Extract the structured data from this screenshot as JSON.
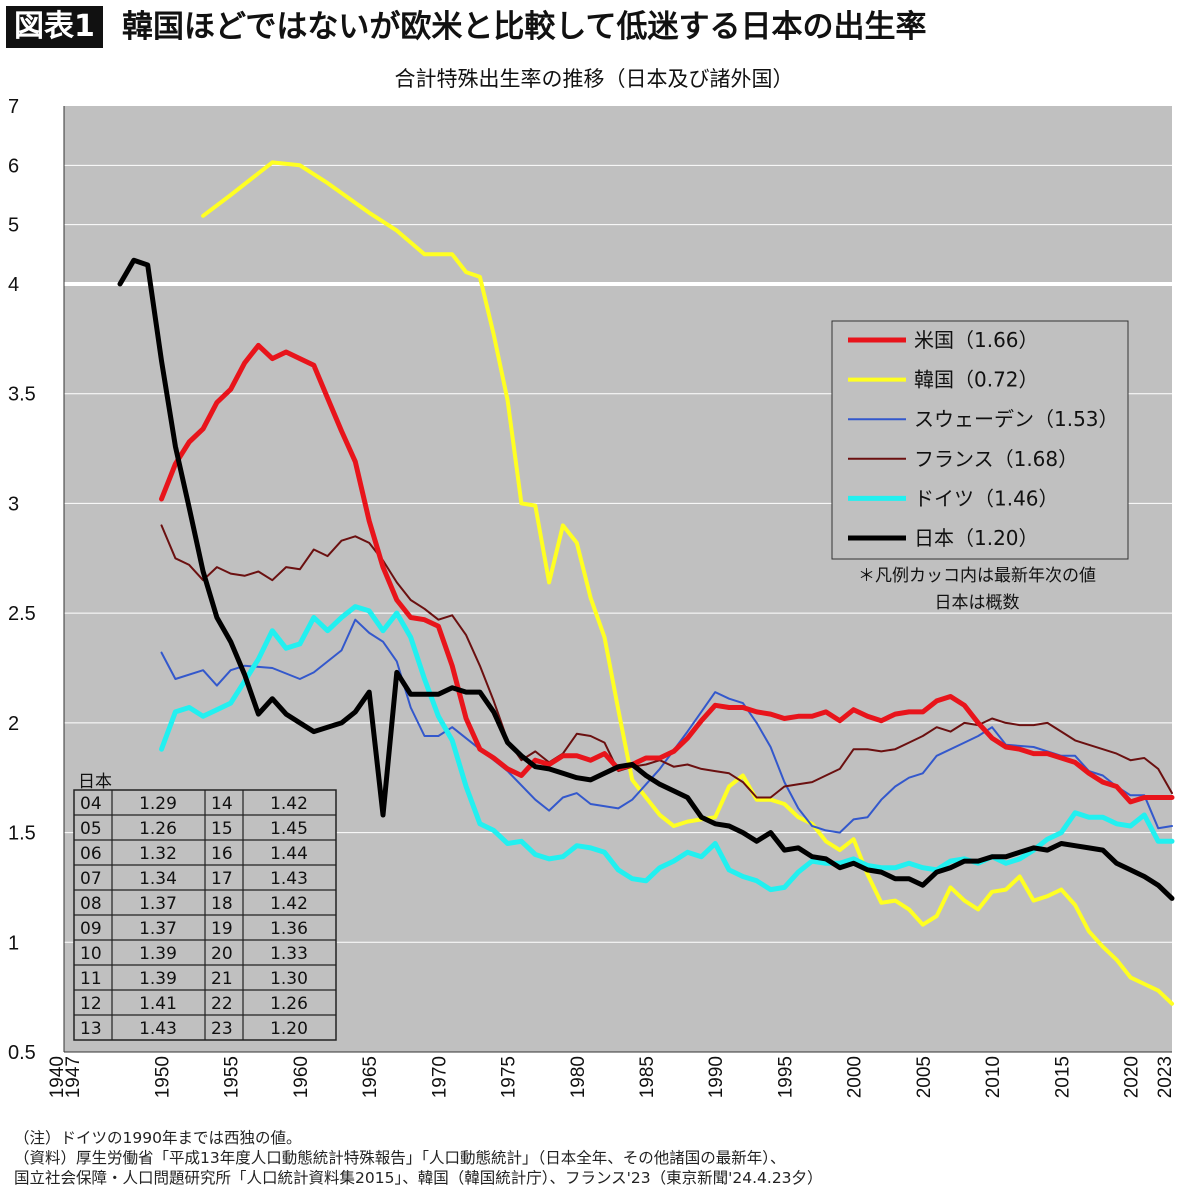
{
  "header": {
    "badge": "図表1",
    "headline": "韓国ほどではないが欧米と比較して低迷する日本の出生率"
  },
  "chart_data": {
    "type": "line",
    "title": "合計特殊出生率の推移（日本及び諸外国）",
    "ylim": [
      0.5,
      7
    ],
    "y_ticks": [
      "0.5",
      "1",
      "1.5",
      "2",
      "2.5",
      "3",
      "3.5",
      "4",
      "5",
      "6",
      "7"
    ],
    "y_scale_note": "axis is broken at 4: 0.5–4 and 4–7 use different scales",
    "x_ticks": [
      "1940",
      "1947",
      "1950",
      "1955",
      "1960",
      "1965",
      "1970",
      "1975",
      "1980",
      "1985",
      "1990",
      "1995",
      "2000",
      "2005",
      "2010",
      "2015",
      "2020",
      "2023"
    ],
    "grid": true,
    "legend_position": "right",
    "legend_note": "＊凡例カッコ内は最新年次の値\n日本は概数",
    "colors": {
      "usa": "#e8141b",
      "korea": "#ffff22",
      "sweden": "#3358cc",
      "france": "#6b1010",
      "germany": "#22f0f0",
      "japan": "#000000",
      "plot_background": "#c0c0c0"
    },
    "series": [
      {
        "key": "usa",
        "name": "米国（1.66）",
        "width": 5,
        "x": [
          1950,
          1951,
          1952,
          1953,
          1954,
          1955,
          1956,
          1957,
          1958,
          1959,
          1960,
          1961,
          1962,
          1963,
          1964,
          1965,
          1966,
          1967,
          1968,
          1969,
          1970,
          1971,
          1972,
          1973,
          1974,
          1975,
          1976,
          1977,
          1978,
          1979,
          1980,
          1981,
          1982,
          1983,
          1984,
          1985,
          1986,
          1987,
          1988,
          1989,
          1990,
          1991,
          1992,
          1993,
          1994,
          1995,
          1996,
          1997,
          1998,
          1999,
          2000,
          2001,
          2002,
          2003,
          2004,
          2005,
          2006,
          2007,
          2008,
          2009,
          2010,
          2011,
          2012,
          2013,
          2014,
          2015,
          2016,
          2017,
          2018,
          2019,
          2020,
          2021,
          2022,
          2023
        ],
        "y": [
          3.02,
          3.18,
          3.28,
          3.34,
          3.46,
          3.52,
          3.64,
          3.72,
          3.66,
          3.69,
          3.66,
          3.63,
          3.48,
          3.33,
          3.19,
          2.92,
          2.71,
          2.56,
          2.48,
          2.47,
          2.44,
          2.26,
          2.02,
          1.88,
          1.84,
          1.79,
          1.76,
          1.83,
          1.81,
          1.85,
          1.85,
          1.83,
          1.86,
          1.79,
          1.81,
          1.84,
          1.84,
          1.87,
          1.93,
          2.01,
          2.08,
          2.07,
          2.07,
          2.05,
          2.04,
          2.02,
          2.03,
          2.03,
          2.05,
          2.01,
          2.06,
          2.03,
          2.01,
          2.04,
          2.05,
          2.05,
          2.1,
          2.12,
          2.08,
          2.0,
          1.93,
          1.89,
          1.88,
          1.86,
          1.86,
          1.84,
          1.82,
          1.77,
          1.73,
          1.71,
          1.64,
          1.66,
          1.66,
          1.66
        ]
      },
      {
        "key": "korea",
        "name": "韓国（0.72）",
        "width": 4,
        "x": [
          1953,
          1955,
          1958,
          1960,
          1962,
          1965,
          1967,
          1969,
          1971,
          1972,
          1973,
          1974,
          1975,
          1976,
          1977,
          1978,
          1979,
          1980,
          1981,
          1982,
          1983,
          1984,
          1985,
          1986,
          1987,
          1988,
          1989,
          1990,
          1991,
          1992,
          1993,
          1994,
          1995,
          1996,
          1997,
          1998,
          1999,
          2000,
          2001,
          2002,
          2003,
          2004,
          2005,
          2006,
          2007,
          2008,
          2009,
          2010,
          2011,
          2012,
          2013,
          2014,
          2015,
          2016,
          2017,
          2018,
          2019,
          2020,
          2021,
          2022,
          2023
        ],
        "y": [
          5.15,
          5.5,
          6.05,
          6.0,
          5.7,
          5.2,
          4.9,
          4.5,
          4.5,
          4.2,
          4.12,
          3.77,
          3.47,
          3.0,
          2.99,
          2.64,
          2.9,
          2.82,
          2.57,
          2.39,
          2.06,
          1.74,
          1.66,
          1.58,
          1.53,
          1.55,
          1.56,
          1.57,
          1.71,
          1.76,
          1.65,
          1.65,
          1.63,
          1.57,
          1.54,
          1.46,
          1.42,
          1.47,
          1.31,
          1.18,
          1.19,
          1.15,
          1.08,
          1.12,
          1.25,
          1.19,
          1.15,
          1.23,
          1.24,
          1.3,
          1.19,
          1.21,
          1.24,
          1.17,
          1.05,
          0.98,
          0.92,
          0.84,
          0.81,
          0.78,
          0.72
        ]
      },
      {
        "key": "sweden",
        "name": "スウェーデン（1.53）",
        "width": 2,
        "x": [
          1950,
          1951,
          1953,
          1954,
          1955,
          1956,
          1958,
          1960,
          1961,
          1963,
          1964,
          1965,
          1966,
          1967,
          1968,
          1969,
          1970,
          1971,
          1973,
          1975,
          1977,
          1978,
          1979,
          1980,
          1981,
          1983,
          1984,
          1986,
          1988,
          1990,
          1991,
          1992,
          1993,
          1994,
          1995,
          1996,
          1997,
          1998,
          1999,
          2000,
          2001,
          2002,
          2003,
          2004,
          2005,
          2006,
          2008,
          2009,
          2010,
          2011,
          2013,
          2015,
          2016,
          2017,
          2018,
          2019,
          2020,
          2021,
          2022,
          2023
        ],
        "y": [
          2.32,
          2.2,
          2.24,
          2.17,
          2.24,
          2.26,
          2.25,
          2.2,
          2.23,
          2.33,
          2.47,
          2.41,
          2.37,
          2.28,
          2.07,
          1.94,
          1.94,
          1.98,
          1.88,
          1.78,
          1.65,
          1.6,
          1.66,
          1.68,
          1.63,
          1.61,
          1.65,
          1.79,
          1.96,
          2.14,
          2.11,
          2.09,
          2.0,
          1.89,
          1.73,
          1.61,
          1.53,
          1.51,
          1.5,
          1.56,
          1.57,
          1.65,
          1.71,
          1.75,
          1.77,
          1.85,
          1.91,
          1.94,
          1.98,
          1.9,
          1.89,
          1.85,
          1.85,
          1.78,
          1.76,
          1.71,
          1.67,
          1.67,
          1.52,
          1.53
        ]
      },
      {
        "key": "france",
        "name": "フランス（1.68）",
        "width": 2,
        "x": [
          1950,
          1951,
          1952,
          1953,
          1954,
          1955,
          1956,
          1957,
          1958,
          1959,
          1960,
          1961,
          1962,
          1963,
          1964,
          1965,
          1966,
          1967,
          1968,
          1969,
          1970,
          1971,
          1972,
          1973,
          1974,
          1975,
          1976,
          1977,
          1978,
          1979,
          1980,
          1981,
          1982,
          1983,
          1984,
          1985,
          1986,
          1987,
          1988,
          1989,
          1990,
          1991,
          1992,
          1993,
          1994,
          1995,
          1996,
          1997,
          1998,
          1999,
          2000,
          2001,
          2002,
          2003,
          2004,
          2005,
          2006,
          2007,
          2008,
          2009,
          2010,
          2011,
          2012,
          2013,
          2014,
          2015,
          2016,
          2017,
          2018,
          2019,
          2020,
          2021,
          2022,
          2023
        ],
        "y": [
          2.9,
          2.75,
          2.72,
          2.65,
          2.71,
          2.68,
          2.67,
          2.69,
          2.65,
          2.71,
          2.7,
          2.79,
          2.76,
          2.83,
          2.85,
          2.82,
          2.74,
          2.64,
          2.56,
          2.52,
          2.47,
          2.49,
          2.4,
          2.26,
          2.1,
          1.92,
          1.83,
          1.87,
          1.82,
          1.86,
          1.95,
          1.94,
          1.91,
          1.78,
          1.8,
          1.81,
          1.83,
          1.8,
          1.81,
          1.79,
          1.78,
          1.77,
          1.73,
          1.66,
          1.66,
          1.71,
          1.72,
          1.73,
          1.76,
          1.79,
          1.88,
          1.88,
          1.87,
          1.88,
          1.91,
          1.94,
          1.98,
          1.96,
          2.0,
          1.99,
          2.02,
          2.0,
          1.99,
          1.99,
          2.0,
          1.96,
          1.92,
          1.9,
          1.88,
          1.86,
          1.83,
          1.84,
          1.79,
          1.68
        ]
      },
      {
        "key": "germany",
        "name": "ドイツ（1.46）",
        "width": 5,
        "x": [
          1950,
          1951,
          1952,
          1953,
          1954,
          1955,
          1956,
          1957,
          1958,
          1959,
          1960,
          1961,
          1962,
          1963,
          1964,
          1965,
          1966,
          1967,
          1968,
          1969,
          1970,
          1971,
          1972,
          1973,
          1974,
          1975,
          1976,
          1977,
          1978,
          1979,
          1980,
          1981,
          1982,
          1983,
          1984,
          1985,
          1986,
          1987,
          1988,
          1989,
          1990,
          1991,
          1992,
          1993,
          1994,
          1995,
          1996,
          1997,
          1998,
          1999,
          2000,
          2001,
          2002,
          2003,
          2004,
          2005,
          2006,
          2007,
          2008,
          2009,
          2010,
          2011,
          2012,
          2013,
          2014,
          2015,
          2016,
          2017,
          2018,
          2019,
          2020,
          2021,
          2022,
          2023
        ],
        "y": [
          1.88,
          2.05,
          2.07,
          2.03,
          2.06,
          2.09,
          2.19,
          2.29,
          2.42,
          2.34,
          2.36,
          2.48,
          2.42,
          2.48,
          2.53,
          2.51,
          2.42,
          2.5,
          2.39,
          2.2,
          2.03,
          1.92,
          1.71,
          1.54,
          1.51,
          1.45,
          1.46,
          1.4,
          1.38,
          1.39,
          1.44,
          1.43,
          1.41,
          1.33,
          1.29,
          1.28,
          1.34,
          1.37,
          1.41,
          1.39,
          1.45,
          1.33,
          1.3,
          1.28,
          1.24,
          1.25,
          1.32,
          1.37,
          1.36,
          1.36,
          1.38,
          1.35,
          1.34,
          1.34,
          1.36,
          1.34,
          1.33,
          1.37,
          1.38,
          1.36,
          1.39,
          1.36,
          1.38,
          1.42,
          1.47,
          1.5,
          1.59,
          1.57,
          1.57,
          1.54,
          1.53,
          1.58,
          1.46,
          1.46
        ]
      },
      {
        "key": "japan",
        "name": "日本（1.20）",
        "width": 5,
        "x": [
          1947,
          1948,
          1949,
          1950,
          1951,
          1952,
          1953,
          1954,
          1955,
          1956,
          1957,
          1958,
          1959,
          1960,
          1961,
          1962,
          1963,
          1964,
          1965,
          1966,
          1967,
          1968,
          1969,
          1970,
          1971,
          1972,
          1973,
          1974,
          1975,
          1976,
          1977,
          1978,
          1979,
          1980,
          1981,
          1982,
          1983,
          1984,
          1985,
          1986,
          1987,
          1988,
          1989,
          1990,
          1991,
          1992,
          1993,
          1994,
          1995,
          1996,
          1997,
          1998,
          1999,
          2000,
          2001,
          2002,
          2003,
          2004,
          2005,
          2006,
          2007,
          2008,
          2009,
          2010,
          2011,
          2012,
          2013,
          2014,
          2015,
          2016,
          2017,
          2018,
          2019,
          2020,
          2021,
          2022,
          2023
        ],
        "y": [
          4.0,
          4.4,
          4.32,
          3.65,
          3.26,
          2.98,
          2.69,
          2.48,
          2.37,
          2.22,
          2.04,
          2.11,
          2.04,
          2.0,
          1.96,
          1.98,
          2.0,
          2.05,
          2.14,
          1.58,
          2.23,
          2.13,
          2.13,
          2.13,
          2.16,
          2.14,
          2.14,
          2.05,
          1.91,
          1.85,
          1.8,
          1.79,
          1.77,
          1.75,
          1.74,
          1.77,
          1.8,
          1.81,
          1.76,
          1.72,
          1.69,
          1.66,
          1.57,
          1.54,
          1.53,
          1.5,
          1.46,
          1.5,
          1.42,
          1.43,
          1.39,
          1.38,
          1.34,
          1.36,
          1.33,
          1.32,
          1.29,
          1.29,
          1.26,
          1.32,
          1.34,
          1.37,
          1.37,
          1.39,
          1.39,
          1.41,
          1.43,
          1.42,
          1.45,
          1.44,
          1.43,
          1.42,
          1.36,
          1.33,
          1.3,
          1.26,
          1.2
        ]
      }
    ],
    "inset_table": {
      "title": "日本",
      "rows": [
        [
          "04",
          "1.29",
          "14",
          "1.42"
        ],
        [
          "05",
          "1.26",
          "15",
          "1.45"
        ],
        [
          "06",
          "1.32",
          "16",
          "1.44"
        ],
        [
          "07",
          "1.34",
          "17",
          "1.43"
        ],
        [
          "08",
          "1.37",
          "18",
          "1.42"
        ],
        [
          "09",
          "1.37",
          "19",
          "1.36"
        ],
        [
          "10",
          "1.39",
          "20",
          "1.33"
        ],
        [
          "11",
          "1.39",
          "21",
          "1.30"
        ],
        [
          "12",
          "1.41",
          "22",
          "1.26"
        ],
        [
          "13",
          "1.43",
          "23",
          "1.20"
        ]
      ]
    }
  },
  "notes": [
    "（注）ドイツの1990年までは西独の値。",
    "（資料）厚生労働省「平成13年度人口動態統計特殊報告」「人口動態統計」（日本全年、その他諸国の最新年）、",
    "国立社会保障・人口問題研究所「人口統計資料集2015」、韓国（韓国統計庁）、フランス'23（東京新聞'24.4.23夕）"
  ]
}
